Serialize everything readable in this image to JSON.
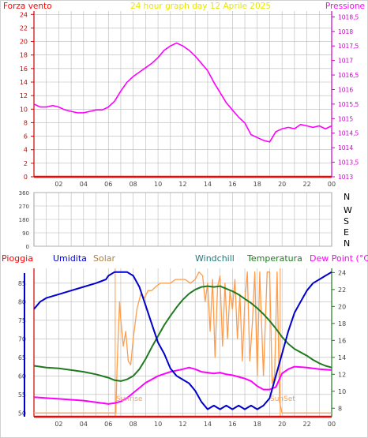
{
  "header": {
    "left_title": "Forza vento",
    "center_title": "24 hour graph day   12 Aprile 2025",
    "right_title": "Pressione"
  },
  "colors": {
    "wind": "#ff0000",
    "pressure": "#ff00ff",
    "humidity": "#0000cc",
    "solar": "#ff9c4a",
    "temperature": "#1f7a1f",
    "dewpoint": "#ff00ff",
    "rain": "#ff0000",
    "grid": "#b8b8b8",
    "axis": "#a0a0a0",
    "tick_label": "#444444"
  },
  "chart_data": [
    {
      "type": "line",
      "name": "pressure-wind",
      "x_ticks": [
        "02",
        "04",
        "06",
        "08",
        "10",
        "12",
        "14",
        "16",
        "18",
        "20",
        "22",
        "00"
      ],
      "xlim": [
        0,
        24
      ],
      "y_left": {
        "label": "Forza vento",
        "ticks": [
          0,
          2,
          4,
          6,
          8,
          10,
          12,
          14,
          16,
          18,
          20,
          22,
          24
        ],
        "lim": [
          0,
          24.5
        ]
      },
      "y_right": {
        "label": "Pressione",
        "ticks": [
          "1013",
          "1013,5",
          "1014",
          "1014,5",
          "1015",
          "1015,5",
          "1016",
          "1016,5",
          "1017",
          "1017,5",
          "1018",
          "1018,5"
        ],
        "lim": [
          1013,
          1018.7
        ]
      },
      "series": [
        {
          "name": "Pressione",
          "axis": "right",
          "x": [
            0.0,
            0.5,
            1.0,
            1.5,
            2.0,
            2.5,
            3.0,
            3.5,
            4.0,
            4.5,
            5.0,
            5.5,
            6.0,
            6.5,
            7.0,
            7.5,
            8.0,
            8.5,
            9.0,
            9.5,
            10.0,
            10.5,
            11.0,
            11.5,
            12.0,
            12.5,
            13.0,
            13.5,
            14.0,
            14.5,
            15.0,
            15.5,
            16.0,
            16.5,
            17.0,
            17.5,
            18.0,
            18.5,
            19.0,
            19.5,
            20.0,
            20.5,
            21.0,
            21.5,
            22.0,
            22.5,
            23.0,
            23.5,
            24.0
          ],
          "y": [
            1015.5,
            1015.4,
            1015.4,
            1015.45,
            1015.4,
            1015.3,
            1015.25,
            1015.2,
            1015.2,
            1015.25,
            1015.3,
            1015.3,
            1015.4,
            1015.6,
            1015.95,
            1016.25,
            1016.45,
            1016.6,
            1016.75,
            1016.9,
            1017.1,
            1017.35,
            1017.5,
            1017.6,
            1017.5,
            1017.35,
            1017.15,
            1016.9,
            1016.65,
            1016.25,
            1015.9,
            1015.55,
            1015.3,
            1015.05,
            1014.85,
            1014.45,
            1014.35,
            1014.25,
            1014.2,
            1014.55,
            1014.65,
            1014.7,
            1014.65,
            1014.8,
            1014.75,
            1014.7,
            1014.75,
            1014.65,
            1014.75
          ]
        },
        {
          "name": "Forza vento",
          "axis": "left",
          "x": [
            0,
            24
          ],
          "y": [
            0,
            0
          ]
        }
      ]
    },
    {
      "type": "scatter",
      "name": "wind-direction",
      "x_ticks": [
        "02",
        "04",
        "06",
        "08",
        "10",
        "12",
        "14",
        "16",
        "18",
        "20",
        "22",
        "00"
      ],
      "y_ticks": [
        0,
        90,
        180,
        270,
        360
      ],
      "right_labels": [
        "N",
        "W",
        "S",
        "E",
        "N"
      ],
      "ylim": [
        0,
        360
      ],
      "values": []
    },
    {
      "type": "line",
      "name": "humidity-temp",
      "x_ticks": [
        "02",
        "04",
        "06",
        "08",
        "10",
        "12",
        "14",
        "16",
        "18",
        "20",
        "22",
        "00"
      ],
      "xlim": [
        0,
        24
      ],
      "labels": {
        "rain": "Pioggia",
        "humidity": "Umidita",
        "solar": "Solar",
        "windchill": "Windchill",
        "temperature": "Temperatura",
        "dewpoint": "Dew Point (°C)"
      },
      "y_left": {
        "ticks": [
          50,
          55,
          60,
          65,
          70,
          75,
          80,
          85
        ],
        "lim": [
          49,
          89
        ]
      },
      "y_right": {
        "ticks": [
          8,
          10,
          12,
          14,
          16,
          18,
          20,
          22,
          24
        ],
        "lim": [
          7,
          24.5
        ]
      },
      "annotations": {
        "sunrise": "Sunrise",
        "sunset": "SunSet"
      },
      "series": [
        {
          "name": "Umidita",
          "axis": "left",
          "x": [
            0.0,
            0.5,
            1.0,
            2.0,
            3.0,
            4.0,
            5.0,
            5.8,
            6.0,
            6.5,
            7.0,
            7.5,
            8.0,
            8.5,
            9.0,
            9.5,
            10.0,
            10.5,
            11.0,
            11.5,
            12.0,
            12.5,
            13.0,
            13.5,
            14.0,
            14.5,
            15.0,
            15.5,
            16.0,
            16.5,
            17.0,
            17.5,
            18.0,
            18.5,
            19.0,
            19.5,
            20.0,
            20.5,
            21.0,
            21.5,
            22.0,
            22.5,
            23.0,
            23.5,
            24.0
          ],
          "y": [
            78,
            80,
            81,
            82,
            83,
            84,
            85,
            86,
            87,
            88,
            88,
            88,
            87,
            84,
            79,
            74,
            69,
            66,
            62,
            60,
            59,
            58,
            56,
            53,
            51,
            52,
            51,
            52,
            51,
            52,
            51,
            52,
            51,
            52,
            54,
            60,
            66,
            72,
            77,
            80,
            83,
            85,
            86,
            87,
            88
          ]
        },
        {
          "name": "Temperatura",
          "axis": "right",
          "x": [
            0.0,
            0.5,
            1.0,
            2.0,
            3.0,
            4.0,
            5.0,
            6.0,
            6.5,
            7.0,
            7.5,
            8.0,
            8.5,
            9.0,
            9.5,
            10.0,
            10.5,
            11.0,
            11.5,
            12.0,
            12.5,
            13.0,
            13.5,
            14.0,
            14.5,
            15.0,
            15.5,
            16.0,
            16.5,
            17.0,
            17.5,
            18.0,
            18.5,
            19.0,
            19.5,
            20.0,
            20.5,
            21.0,
            21.5,
            22.0,
            22.5,
            23.0,
            23.5,
            24.0
          ],
          "y": [
            13.0,
            12.9,
            12.8,
            12.7,
            12.5,
            12.3,
            12.0,
            11.6,
            11.3,
            11.2,
            11.4,
            11.8,
            12.6,
            13.8,
            15.2,
            16.5,
            17.8,
            18.9,
            19.9,
            20.8,
            21.5,
            22.0,
            22.3,
            22.4,
            22.3,
            22.4,
            22.1,
            21.8,
            21.4,
            20.9,
            20.4,
            19.8,
            19.1,
            18.3,
            17.4,
            16.4,
            15.6,
            15.0,
            14.6,
            14.2,
            13.7,
            13.3,
            13.0,
            12.8
          ]
        },
        {
          "name": "Dew Point",
          "axis": "right",
          "x": [
            0.0,
            1.0,
            2.0,
            3.0,
            4.0,
            5.0,
            5.5,
            6.0,
            6.5,
            7.0,
            7.5,
            8.0,
            8.5,
            9.0,
            9.5,
            10.0,
            11.0,
            12.0,
            12.5,
            13.0,
            13.5,
            14.0,
            14.5,
            15.0,
            15.5,
            16.0,
            16.5,
            17.0,
            17.5,
            18.0,
            18.5,
            19.0,
            19.5,
            20.0,
            20.5,
            21.0,
            22.0,
            23.0,
            24.0
          ],
          "y": [
            9.3,
            9.2,
            9.1,
            9.0,
            8.9,
            8.7,
            8.6,
            8.5,
            8.6,
            8.8,
            9.2,
            9.8,
            10.4,
            11.0,
            11.4,
            11.8,
            12.3,
            12.6,
            12.8,
            12.6,
            12.3,
            12.2,
            12.1,
            12.2,
            12.0,
            11.9,
            11.7,
            11.5,
            11.2,
            10.6,
            10.2,
            10.2,
            10.5,
            12.1,
            12.6,
            12.9,
            12.8,
            12.6,
            12.5
          ]
        },
        {
          "name": "Solar",
          "axis": "left",
          "x": [
            0.0,
            6.6,
            6.7,
            6.9,
            7.0,
            7.2,
            7.4,
            7.6,
            7.8,
            8.0,
            8.3,
            8.6,
            8.9,
            9.2,
            9.5,
            9.8,
            10.2,
            10.6,
            11.0,
            11.4,
            11.8,
            12.2,
            12.6,
            13.0,
            13.3,
            13.6,
            13.8,
            14.0,
            14.2,
            14.4,
            14.6,
            14.8,
            15.0,
            15.2,
            15.4,
            15.6,
            15.8,
            16.0,
            16.2,
            16.4,
            16.6,
            16.8,
            17.0,
            17.2,
            17.4,
            17.6,
            17.8,
            18.0,
            18.2,
            18.5,
            18.8,
            19.0,
            19.2,
            19.4,
            19.6,
            19.8,
            20.0,
            24.0
          ],
          "y": [
            50,
            50,
            62,
            80,
            75,
            68,
            72,
            64,
            63,
            70,
            78,
            82,
            81,
            83,
            83,
            84,
            85,
            85,
            85,
            86,
            86,
            86,
            85,
            86,
            88,
            87,
            80,
            85,
            72,
            86,
            65,
            84,
            87,
            68,
            85,
            70,
            83,
            78,
            86,
            70,
            82,
            64,
            80,
            88,
            64,
            74,
            88,
            60,
            88,
            60,
            88,
            88,
            58,
            60,
            88,
            53,
            50,
            50
          ]
        },
        {
          "name": "Pioggia",
          "axis": "right",
          "x": [
            0,
            24
          ],
          "y": [
            7,
            7
          ]
        }
      ]
    }
  ]
}
